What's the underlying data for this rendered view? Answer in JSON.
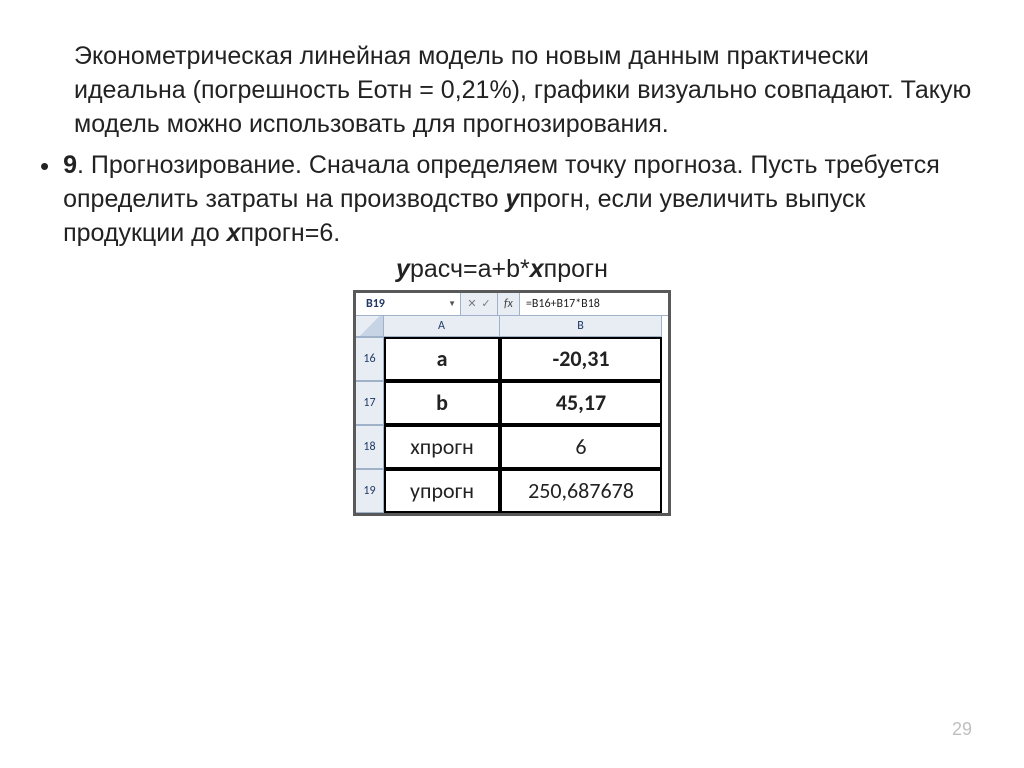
{
  "text": {
    "p1": "Эконометрическая линейная модель по новым данным практически идеальна (погрешность Еотн = 0,21%), графики визуально совпадают. Такую модель можно использовать для прогнозирования.",
    "b1_lead": "9",
    "b1_rest_a": ". Прогнозирование. Сначала определяем точку прогноза. Пусть требуется определить затраты на производство ",
    "b1_y": "у",
    "b1_y_sub": "прогн, если увеличить выпуск продукции до ",
    "b1_x": "х",
    "b1_x_sub": "прогн=6.",
    "formula_y": "у",
    "formula_mid": "расч=a+b*",
    "formula_x": "х",
    "formula_end": "прогн"
  },
  "excel": {
    "namebox": "B19",
    "fx_label": "fx",
    "formula": "=B16+B17*B18",
    "col_headers": [
      "A",
      "B"
    ],
    "row_headers": [
      "16",
      "17",
      "18",
      "19"
    ],
    "cells": {
      "a16": "a",
      "b16": "-20,31",
      "a17": "b",
      "b17": "45,17",
      "a18": "хпрогн",
      "b18": "6",
      "a19": "упрогн",
      "b19": "250,687678"
    }
  },
  "page_number": "29"
}
